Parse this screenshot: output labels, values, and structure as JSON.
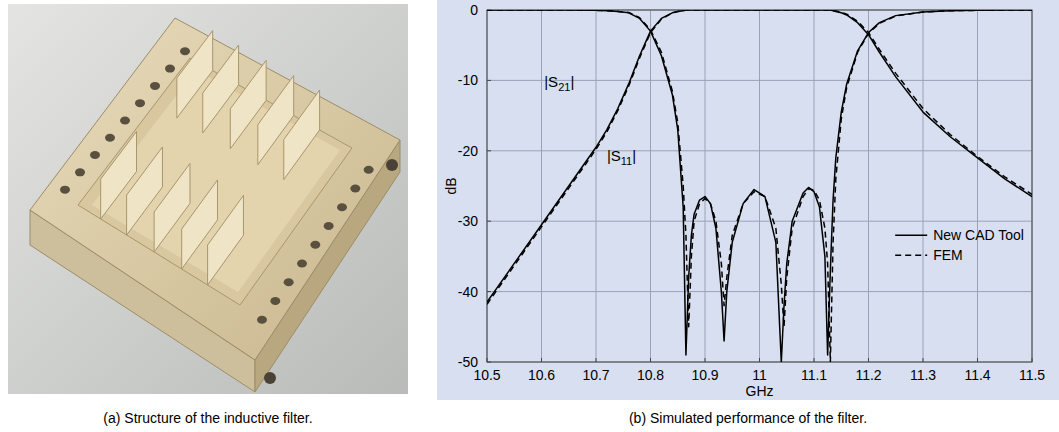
{
  "photo": {
    "caption": "(a) Structure of the inductive filter."
  },
  "chart_data": {
    "type": "line",
    "caption": "(b) Simulated performance of the filter.",
    "x_label": "GHz",
    "y_label": "dB",
    "xlim": [
      10.5,
      11.5
    ],
    "ylim": [
      -50,
      0
    ],
    "xticks": [
      10.5,
      10.6,
      10.7,
      10.8,
      10.9,
      11,
      11.1,
      11.2,
      11.3,
      11.4,
      11.5
    ],
    "yticks": [
      0,
      -10,
      -20,
      -30,
      -40,
      -50
    ],
    "grid": true,
    "legend": "right",
    "x": [
      10.5,
      10.55,
      10.6,
      10.65,
      10.7,
      10.72,
      10.74,
      10.76,
      10.78,
      10.8,
      10.82,
      10.84,
      10.85,
      10.86,
      10.865,
      10.87,
      10.875,
      10.88,
      10.89,
      10.9,
      10.91,
      10.92,
      10.93,
      10.935,
      10.94,
      10.95,
      10.97,
      10.99,
      11.01,
      11.03,
      11.04,
      11.045,
      11.05,
      11.06,
      11.08,
      11.09,
      11.1,
      11.11,
      11.12,
      11.125,
      11.13,
      11.135,
      11.14,
      11.15,
      11.16,
      11.18,
      11.2,
      11.22,
      11.25,
      11.3,
      11.35,
      11.4,
      11.45,
      11.5
    ],
    "series": [
      {
        "name": "New CAD Tool",
        "color": "#000000",
        "line_style": "solid",
        "values": [
          -41.5,
          -36,
          -30.5,
          -25,
          -19.5,
          -17,
          -14,
          -10.5,
          -6.5,
          -3,
          -1.2,
          -0.4,
          -0.2,
          -0.1,
          0,
          0,
          0,
          0,
          0,
          0,
          0,
          0,
          0,
          0,
          0,
          0,
          0,
          0,
          0,
          0,
          0,
          0,
          0,
          0,
          0,
          0,
          0,
          0,
          0,
          0,
          0,
          -0.1,
          -0.2,
          -0.4,
          -0.7,
          -1.8,
          -3.5,
          -6,
          -9.5,
          -14.5,
          -18,
          -21,
          -24,
          -26.5
        ]
      },
      {
        "name": "New CAD Tool",
        "color": "#000000",
        "line_style": "solid",
        "values": [
          0,
          0,
          0,
          0,
          -0.05,
          -0.1,
          -0.2,
          -0.4,
          -1.2,
          -3,
          -6.5,
          -12,
          -17,
          -28,
          -49,
          -38,
          -32,
          -29,
          -27,
          -26.5,
          -27.5,
          -31,
          -40,
          -47,
          -40,
          -33,
          -27.5,
          -25.5,
          -26.5,
          -33,
          -50,
          -42,
          -36,
          -30,
          -26,
          -25.2,
          -25.8,
          -28,
          -35,
          -49,
          -37,
          -27,
          -21,
          -14.5,
          -10.5,
          -5.8,
          -3.2,
          -1.8,
          -0.8,
          -0.3,
          -0.1,
          -0.05,
          0,
          0
        ]
      },
      {
        "name": "FEM",
        "color": "#000000",
        "line_style": "dashed",
        "values": [
          -41.8,
          -36.3,
          -30.8,
          -25.3,
          -19.8,
          -17.3,
          -14.3,
          -10.8,
          -6.8,
          -3.2,
          -1.3,
          -0.4,
          -0.2,
          -0.1,
          0,
          0,
          0,
          0,
          0,
          0,
          0,
          0,
          0,
          0,
          0,
          0,
          0,
          0,
          0,
          0,
          0,
          0,
          0,
          0,
          0,
          0,
          0,
          0,
          0,
          0,
          0,
          -0.1,
          -0.15,
          -0.3,
          -0.6,
          -1.6,
          -3.2,
          -5.6,
          -9,
          -14,
          -17.7,
          -20.8,
          -23.7,
          -26.2
        ]
      },
      {
        "name": "FEM",
        "color": "#000000",
        "line_style": "dashed",
        "values": [
          0,
          0,
          0,
          0,
          -0.05,
          -0.1,
          -0.2,
          -0.35,
          -1.1,
          -2.8,
          -6,
          -11.5,
          -16,
          -25,
          -32,
          -45,
          -35,
          -30,
          -27.5,
          -26.8,
          -27.5,
          -30,
          -36,
          -42,
          -38,
          -32,
          -27.5,
          -25.8,
          -26.5,
          -31,
          -39,
          -45,
          -38,
          -31,
          -26.5,
          -25.4,
          -25.6,
          -27,
          -31,
          -36,
          -50,
          -33,
          -24,
          -15.5,
          -11,
          -6,
          -3.3,
          -1.9,
          -0.85,
          -0.3,
          -0.1,
          -0.05,
          0,
          0
        ]
      }
    ],
    "annotations": [
      {
        "text": "|S21|",
        "x": 10.605,
        "y": -11
      },
      {
        "text": "|S11|",
        "x": 10.72,
        "y": -21.5
      }
    ]
  }
}
